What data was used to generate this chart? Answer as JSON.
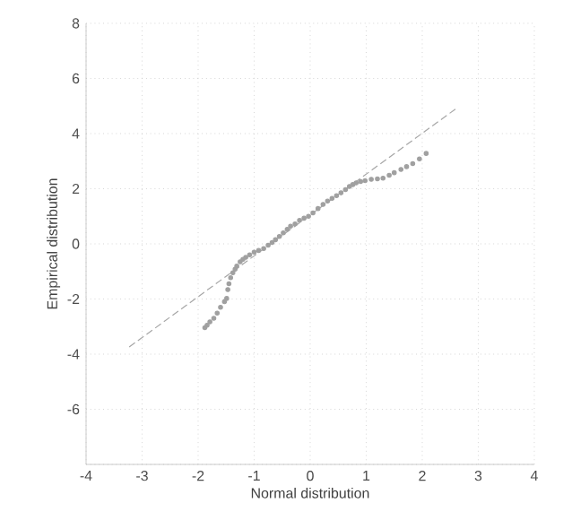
{
  "chart_data": {
    "type": "scatter",
    "xlabel": "Normal distribution",
    "ylabel": "Empirical distribution",
    "xlim": [
      -4,
      4
    ],
    "ylim": [
      -8,
      8
    ],
    "xticks": [
      -4,
      -3,
      -2,
      -1,
      0,
      1,
      2,
      3,
      4
    ],
    "yticks": [
      {
        "value": -8,
        "label": null
      },
      -6,
      -4,
      -2,
      0,
      2,
      4,
      6,
      8
    ],
    "grid": true,
    "marker": "circle",
    "series": [
      {
        "type": "scatter",
        "color": "#a0a0a0",
        "x": [
          -1.88,
          -1.84,
          -1.79,
          -1.72,
          -1.66,
          -1.6,
          -1.53,
          -1.49,
          -1.47,
          -1.45,
          -1.42,
          -1.38,
          -1.34,
          -1.31,
          -1.25,
          -1.2,
          -1.15,
          -1.08,
          -1.0,
          -0.92,
          -0.83,
          -0.75,
          -0.68,
          -0.62,
          -0.55,
          -0.48,
          -0.41,
          -0.35,
          -0.27,
          -0.19,
          -0.11,
          -0.03,
          0.05,
          0.14,
          0.23,
          0.31,
          0.39,
          0.47,
          0.55,
          0.63,
          0.7,
          0.76,
          0.82,
          0.9,
          0.98,
          1.09,
          1.2,
          1.3,
          1.41,
          1.5,
          1.62,
          1.72,
          1.83,
          1.95,
          2.07
        ],
        "values": [
          -3.04,
          -2.95,
          -2.83,
          -2.7,
          -2.51,
          -2.3,
          -2.1,
          -1.98,
          -1.66,
          -1.45,
          -1.23,
          -1.05,
          -0.92,
          -0.81,
          -0.65,
          -0.56,
          -0.49,
          -0.4,
          -0.3,
          -0.24,
          -0.17,
          -0.05,
          0.05,
          0.15,
          0.27,
          0.4,
          0.53,
          0.64,
          0.72,
          0.85,
          0.93,
          1.0,
          1.12,
          1.28,
          1.43,
          1.55,
          1.65,
          1.75,
          1.85,
          1.97,
          2.08,
          2.15,
          2.21,
          2.26,
          2.29,
          2.34,
          2.36,
          2.38,
          2.49,
          2.58,
          2.7,
          2.8,
          2.91,
          3.08,
          3.28
        ]
      },
      {
        "type": "line",
        "color": "#a6a6a6",
        "line_style": "dashed",
        "marker": "none",
        "x": [
          -3.23,
          2.6
        ],
        "values": [
          -3.74,
          4.9
        ]
      }
    ]
  }
}
